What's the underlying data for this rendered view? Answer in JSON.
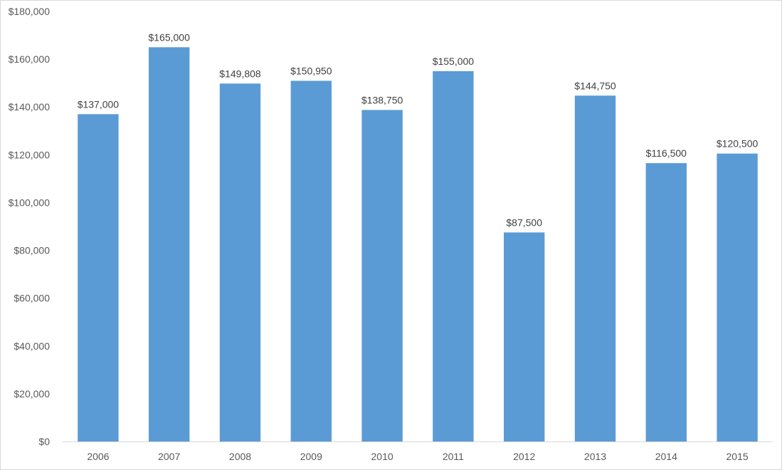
{
  "chart_data": {
    "type": "bar",
    "title": "",
    "xlabel": "",
    "ylabel": "",
    "categories": [
      "2006",
      "2007",
      "2008",
      "2009",
      "2010",
      "2011",
      "2012",
      "2013",
      "2014",
      "2015"
    ],
    "values": [
      137000,
      165000,
      149808,
      150950,
      138750,
      155000,
      87500,
      144750,
      116500,
      120500
    ],
    "data_labels": [
      "$137,000",
      "$165,000",
      "$149,808",
      "$150,950",
      "$138,750",
      "$155,000",
      "$87,500",
      "$144,750",
      "$116,500",
      "$120,500"
    ],
    "ylim": [
      0,
      180000
    ],
    "yticks": [
      0,
      20000,
      40000,
      60000,
      80000,
      100000,
      120000,
      140000,
      160000,
      180000
    ],
    "ytick_labels": [
      "$0",
      "$20,000",
      "$40,000",
      "$60,000",
      "$80,000",
      "$100,000",
      "$120,000",
      "$140,000",
      "$160,000",
      "$180,000"
    ],
    "grid": false,
    "legend": "none",
    "bar_color": "#5b9bd5",
    "axis_color": "#d9d9d9",
    "text_color": "#595959"
  }
}
